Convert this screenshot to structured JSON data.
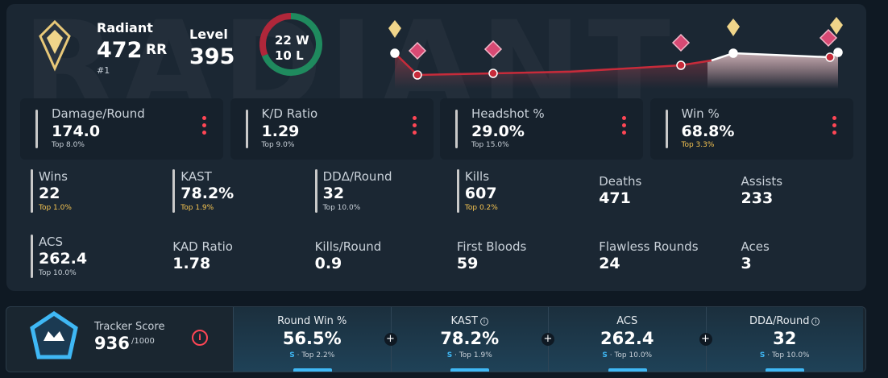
{
  "watermark": "RADIANT",
  "rank": {
    "name": "Radiant",
    "rr": "472",
    "rr_unit": "RR",
    "position": "#1"
  },
  "level": {
    "label": "Level",
    "value": "395"
  },
  "record": {
    "wins": 22,
    "wins_unit": "W",
    "losses": 10,
    "losses_unit": "L"
  },
  "top_stats": [
    {
      "label": "Damage/Round",
      "value": "174.0",
      "rank": "Top 8.0%"
    },
    {
      "label": "K/D Ratio",
      "value": "1.29",
      "rank": "Top 9.0%"
    },
    {
      "label": "Headshot %",
      "value": "29.0%",
      "rank": "Top 15.0%"
    },
    {
      "label": "Win %",
      "value": "68.8%",
      "rank": "Top 3.3%",
      "rank_color": "#f5c451"
    }
  ],
  "stats": [
    {
      "label": "Wins",
      "value": "22",
      "rank": "Top 1.0%",
      "rank_color": "#f5c451"
    },
    {
      "label": "KAST",
      "value": "78.2%",
      "rank": "Top 1.9%",
      "rank_color": "#f5c451"
    },
    {
      "label": "DDΔ/Round",
      "value": "32",
      "rank": "Top 10.0%"
    },
    {
      "label": "Kills",
      "value": "607",
      "rank": "Top 0.2%",
      "rank_color": "#f5c451"
    },
    {
      "label": "Deaths",
      "value": "471"
    },
    {
      "label": "Assists",
      "value": "233"
    },
    {
      "label": "ACS",
      "value": "262.4",
      "rank": "Top 10.0%"
    },
    {
      "label": "KAD Ratio",
      "value": "1.78"
    },
    {
      "label": "Kills/Round",
      "value": "0.9"
    },
    {
      "label": "First Bloods",
      "value": "59"
    },
    {
      "label": "Flawless Rounds",
      "value": "24"
    },
    {
      "label": "Aces",
      "value": "3"
    }
  ],
  "tracker": {
    "label": "Tracker Score",
    "value": "936",
    "max": "/1000"
  },
  "highlights": [
    {
      "label": "Round Win %",
      "value": "56.5%",
      "tier": "S",
      "rank": "· Top 2.2%"
    },
    {
      "label": "KAST",
      "value": "78.2%",
      "tier": "S",
      "rank": "· Top 1.9%",
      "info": true
    },
    {
      "label": "ACS",
      "value": "262.4",
      "tier": "S",
      "rank": "· Top 10.0%"
    },
    {
      "label": "DDΔ/Round",
      "value": "32",
      "tier": "S",
      "rank": "· Top 10.0%",
      "info": true
    }
  ]
}
